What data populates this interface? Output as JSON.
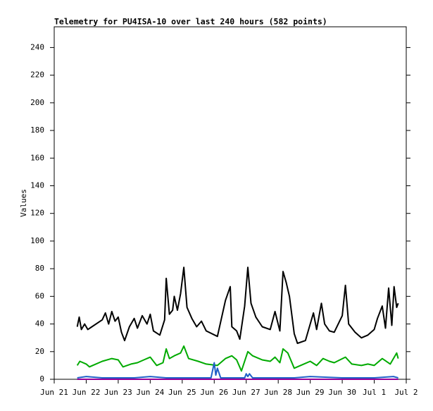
{
  "chart_data": {
    "type": "line",
    "title": "Telemetry for PU4ISA-10 over last 240 hours (582 points)",
    "y_label": "Values",
    "xlim": [
      0,
      11
    ],
    "xticks": [
      {
        "value": 0,
        "label": "Jun 21"
      },
      {
        "value": 1,
        "label": "Jun 22"
      },
      {
        "value": 2,
        "label": "Jun 23"
      },
      {
        "value": 3,
        "label": "Jun 24"
      },
      {
        "value": 4,
        "label": "Jun 25"
      },
      {
        "value": 5,
        "label": "Jun 26"
      },
      {
        "value": 6,
        "label": "Jun 27"
      },
      {
        "value": 7,
        "label": "Jun 28"
      },
      {
        "value": 8,
        "label": "Jun 29"
      },
      {
        "value": 9,
        "label": "Jun 30"
      },
      {
        "value": 10,
        "label": "Jul 1"
      },
      {
        "value": 11,
        "label": "Jul 2"
      }
    ],
    "ylim": [
      0,
      255
    ],
    "yticks": [
      0,
      20,
      40,
      60,
      80,
      100,
      120,
      140,
      160,
      180,
      200,
      220,
      240
    ],
    "series": [
      {
        "color": "#000000",
        "x": [
          0.72,
          0.78,
          0.85,
          0.95,
          1.05,
          1.5,
          1.6,
          1.7,
          1.8,
          1.9,
          2.0,
          2.1,
          2.2,
          2.35,
          2.5,
          2.6,
          2.75,
          2.9,
          3.0,
          3.1,
          3.3,
          3.45,
          3.5,
          3.6,
          3.7,
          3.75,
          3.85,
          3.95,
          4.05,
          4.15,
          4.3,
          4.45,
          4.6,
          4.75,
          5.1,
          5.35,
          5.5,
          5.55,
          5.7,
          5.8,
          5.95,
          6.05,
          6.15,
          6.3,
          6.5,
          6.75,
          6.9,
          7.05,
          7.15,
          7.25,
          7.35,
          7.5,
          7.6,
          7.85,
          8.0,
          8.1,
          8.2,
          8.35,
          8.45,
          8.6,
          8.75,
          9.0,
          9.1,
          9.2,
          9.4,
          9.6,
          9.8,
          10.0,
          10.1,
          10.25,
          10.35,
          10.45,
          10.55,
          10.62,
          10.7,
          10.75
        ],
        "values": [
          38,
          45,
          36,
          40,
          36,
          43,
          48,
          40,
          49,
          42,
          45,
          34,
          28,
          38,
          44,
          37,
          46,
          40,
          47,
          35,
          32,
          43,
          73,
          47,
          50,
          60,
          50,
          62,
          81,
          52,
          44,
          38,
          42,
          35,
          31,
          57,
          67,
          38,
          35,
          29,
          53,
          81,
          55,
          45,
          38,
          36,
          49,
          35,
          78,
          70,
          60,
          33,
          26,
          28,
          40,
          48,
          36,
          55,
          40,
          35,
          34,
          46,
          68,
          40,
          34,
          30,
          32,
          36,
          44,
          53,
          37,
          66,
          39,
          67,
          52,
          55
        ]
      },
      {
        "color": "#00aa00",
        "x": [
          0.72,
          0.8,
          1.0,
          1.1,
          1.5,
          1.8,
          2.0,
          2.15,
          2.4,
          2.6,
          2.8,
          3.0,
          3.2,
          3.4,
          3.5,
          3.6,
          3.75,
          3.95,
          4.05,
          4.2,
          4.5,
          4.75,
          5.1,
          5.35,
          5.55,
          5.7,
          5.85,
          6.05,
          6.2,
          6.5,
          6.75,
          6.9,
          7.05,
          7.15,
          7.3,
          7.5,
          7.8,
          8.0,
          8.2,
          8.4,
          8.6,
          8.75,
          9.1,
          9.3,
          9.6,
          9.8,
          10.0,
          10.25,
          10.5,
          10.7,
          10.75
        ],
        "values": [
          10,
          13,
          11,
          9,
          13,
          15,
          14,
          9,
          11,
          12,
          14,
          16,
          10,
          12,
          22,
          15,
          17,
          19,
          24,
          15,
          13,
          11,
          10,
          15,
          17,
          14,
          6,
          20,
          17,
          14,
          13,
          16,
          12,
          22,
          19,
          8,
          11,
          13,
          10,
          15,
          13,
          12,
          16,
          11,
          10,
          11,
          10,
          15,
          11,
          19,
          15
        ]
      },
      {
        "color": "#1f5fc7",
        "x": [
          0.72,
          1.0,
          1.5,
          2.5,
          3.0,
          3.5,
          4.5,
          4.9,
          5.0,
          5.05,
          5.1,
          5.2,
          5.95,
          6.0,
          6.05,
          6.1,
          6.2,
          7.5,
          8.0,
          9.0,
          10.0,
          10.6,
          10.75
        ],
        "values": [
          1,
          2,
          1,
          1,
          2,
          1,
          1,
          1,
          12,
          3,
          8,
          1,
          1,
          4,
          2,
          4,
          1,
          1,
          2,
          1,
          1,
          2,
          1
        ]
      },
      {
        "color": "#990099",
        "x": [
          0.72,
          5.0,
          10.75
        ],
        "values": [
          0,
          0,
          0
        ]
      }
    ]
  }
}
